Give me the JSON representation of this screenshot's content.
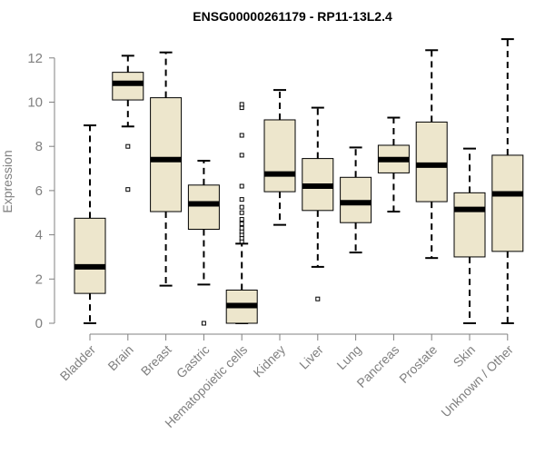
{
  "chart_data": {
    "type": "boxplot",
    "title": "ENSG00000261179 - RP11-13L2.4",
    "xlabel": "",
    "ylabel": "Expression",
    "ylim": [
      0,
      12.9
    ],
    "yticks": [
      0,
      2,
      4,
      6,
      8,
      10,
      12
    ],
    "box_fill": "#ede6cc",
    "categories": [
      "Bladder",
      "Brain",
      "Breast",
      "Gastric",
      "Hematopoietic cells",
      "Kidney",
      "Liver",
      "Lung",
      "Pancreas",
      "Prostate",
      "Skin",
      "Unknown / Other"
    ],
    "boxes": [
      {
        "whisker_low": 0.0,
        "q1": 1.35,
        "median": 2.55,
        "q3": 4.75,
        "whisker_high": 8.95,
        "outliers": []
      },
      {
        "whisker_low": 8.9,
        "q1": 10.1,
        "median": 10.85,
        "q3": 11.35,
        "whisker_high": 12.1,
        "outliers": [
          8.0,
          6.05
        ]
      },
      {
        "whisker_low": 1.7,
        "q1": 5.05,
        "median": 7.4,
        "q3": 10.2,
        "whisker_high": 12.25,
        "outliers": []
      },
      {
        "whisker_low": 1.75,
        "q1": 4.25,
        "median": 5.4,
        "q3": 6.25,
        "whisker_high": 7.35,
        "outliers": [
          0.0
        ]
      },
      {
        "whisker_low": 0.0,
        "q1": 0.0,
        "median": 0.8,
        "q3": 1.5,
        "whisker_high": 3.6,
        "outliers": [
          3.7,
          3.85,
          4.0,
          4.15,
          4.3,
          4.5,
          4.7,
          5.0,
          5.25,
          5.6,
          6.2,
          7.6,
          8.5,
          9.75,
          9.9
        ]
      },
      {
        "whisker_low": 4.45,
        "q1": 5.95,
        "median": 6.75,
        "q3": 9.2,
        "whisker_high": 10.55,
        "outliers": []
      },
      {
        "whisker_low": 2.55,
        "q1": 5.1,
        "median": 6.2,
        "q3": 7.45,
        "whisker_high": 9.75,
        "outliers": [
          1.1
        ]
      },
      {
        "whisker_low": 3.2,
        "q1": 4.55,
        "median": 5.45,
        "q3": 6.6,
        "whisker_high": 7.95,
        "outliers": []
      },
      {
        "whisker_low": 5.05,
        "q1": 6.8,
        "median": 7.4,
        "q3": 8.05,
        "whisker_high": 9.3,
        "outliers": []
      },
      {
        "whisker_low": 2.95,
        "q1": 5.5,
        "median": 7.15,
        "q3": 9.1,
        "whisker_high": 12.35,
        "outliers": []
      },
      {
        "whisker_low": 0.0,
        "q1": 3.0,
        "median": 5.15,
        "q3": 5.9,
        "whisker_high": 7.9,
        "outliers": []
      },
      {
        "whisker_low": 0.0,
        "q1": 3.25,
        "median": 5.85,
        "q3": 7.6,
        "whisker_high": 12.85,
        "outliers": []
      }
    ]
  }
}
